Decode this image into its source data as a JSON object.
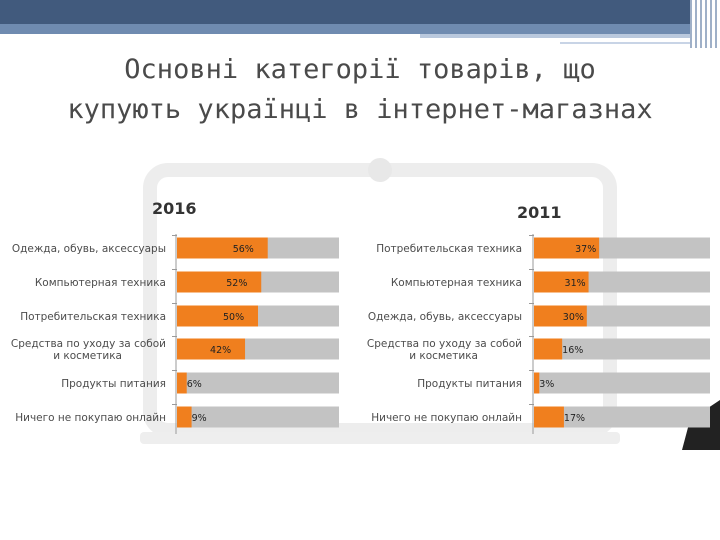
{
  "title": {
    "line1": "Основні категорії товарів, що",
    "line2": "купують українці в інтернет-магазнах"
  },
  "colors": {
    "bar_fill": "#f07f1e",
    "track": "#c3c3c3",
    "accent_edge": "#e8760f"
  },
  "chart_data": [
    {
      "type": "bar",
      "orientation": "horizontal",
      "title": "2016",
      "categories": [
        [
          "Одежда, обувь, аксессуары"
        ],
        [
          "Компьютерная техника"
        ],
        [
          "Потребительская техника"
        ],
        [
          "Средства по уходу за собой",
          "и косметика"
        ],
        [
          "Продукты питания"
        ],
        [
          "Ничего не покупаю онлайн"
        ]
      ],
      "values": [
        56,
        52,
        50,
        42,
        6,
        9
      ],
      "value_labels": [
        "56%",
        "52%",
        "50%",
        "42%",
        "6%",
        "9%"
      ],
      "xlim": [
        0,
        100
      ]
    },
    {
      "type": "bar",
      "orientation": "horizontal",
      "title": "2011",
      "categories": [
        [
          "Потребительская техника"
        ],
        [
          "Компьютерная техника"
        ],
        [
          "Одежда, обувь, аксессуары"
        ],
        [
          "Средства по уходу за собой",
          "и косметика"
        ],
        [
          "Продукты питания"
        ],
        [
          "Ничего не покупаю онлайн"
        ]
      ],
      "values": [
        37,
        31,
        30,
        16,
        3,
        17
      ],
      "value_labels": [
        "37%",
        "31%",
        "30%",
        "16%",
        "3%",
        "17%"
      ],
      "xlim": [
        0,
        100
      ]
    }
  ]
}
